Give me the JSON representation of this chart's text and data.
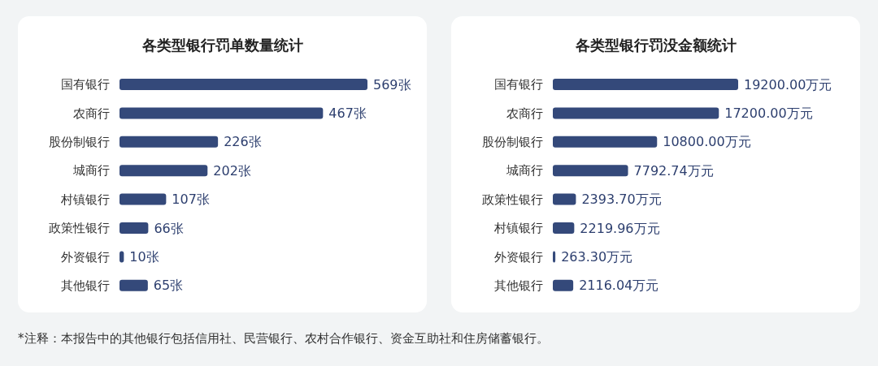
{
  "chart_data": [
    {
      "type": "bar",
      "orientation": "horizontal",
      "title": "各类型银行罚单数量统计",
      "categories": [
        "国有银行",
        "农商行",
        "股份制银行",
        "城商行",
        "村镇银行",
        "政策性银行",
        "外资银行",
        "其他银行"
      ],
      "values": [
        569,
        467,
        226,
        202,
        107,
        66,
        10,
        65
      ],
      "color": "#34497a",
      "value_labels": [
        "569张",
        "467张",
        "226张",
        "202张",
        "107张",
        "66张",
        "10张",
        "65张"
      ],
      "annotations": [
        "*注释：本报告中的其他银行包括信用社、民营银行、农村合作银行、资金互助社和住房储蓄银行。"
      ]
    },
    {
      "type": "bar",
      "orientation": "horizontal",
      "title": "各类型银行罚没金额统计",
      "categories": [
        "国有银行",
        "农商行",
        "股份制银行",
        "城商行",
        "政策性银行",
        "村镇银行",
        "外资银行",
        "其他银行"
      ],
      "values": [
        19200.0,
        17200.0,
        10800.0,
        7792.74,
        2393.7,
        2219.96,
        263.3,
        2116.04
      ],
      "color": "#34497a",
      "value_labels": [
        "19200.00万元",
        "17200.00万元",
        "10800.00万元",
        "7792.74万元",
        "2393.70万元",
        "2219.96万元",
        "263.30万元",
        "2116.04万元"
      ]
    }
  ]
}
